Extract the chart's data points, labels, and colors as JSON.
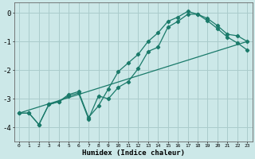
{
  "xlabel": "Humidex (Indice chaleur)",
  "ylabel": "",
  "bg_color": "#cce8e8",
  "grid_color": "#aacccc",
  "line_color": "#1a7a6a",
  "xlim": [
    -0.5,
    23.5
  ],
  "ylim": [
    -4.5,
    0.35
  ],
  "xticks": [
    0,
    1,
    2,
    3,
    4,
    5,
    6,
    7,
    8,
    9,
    10,
    11,
    12,
    13,
    14,
    15,
    16,
    17,
    18,
    19,
    20,
    21,
    22,
    23
  ],
  "yticks": [
    0,
    -1,
    -2,
    -3,
    -4
  ],
  "line1_x": [
    0,
    1,
    2,
    3,
    4,
    5,
    6,
    7,
    8,
    9,
    10,
    11,
    12,
    13,
    14,
    15,
    16,
    17,
    18,
    19,
    20,
    21,
    22,
    23
  ],
  "line1_y": [
    -3.5,
    -3.5,
    -3.9,
    -3.2,
    -3.1,
    -2.9,
    -2.8,
    -3.7,
    -2.9,
    -3.0,
    -2.6,
    -2.4,
    -1.95,
    -1.35,
    -1.2,
    -0.5,
    -0.3,
    -0.05,
    -0.05,
    -0.2,
    -0.45,
    -0.75,
    -0.8,
    -1.0
  ],
  "line2_x": [
    0,
    1,
    2,
    3,
    4,
    5,
    6,
    7,
    8,
    9,
    10,
    11,
    12,
    13,
    14,
    15,
    16,
    17,
    18,
    19,
    20,
    21,
    22,
    23
  ],
  "line2_y": [
    -3.5,
    -3.5,
    -3.9,
    -3.2,
    -3.1,
    -2.85,
    -2.75,
    -3.65,
    -3.25,
    -2.65,
    -2.05,
    -1.75,
    -1.45,
    -1.0,
    -0.7,
    -0.3,
    -0.15,
    0.05,
    -0.05,
    -0.28,
    -0.55,
    -0.85,
    -1.05,
    -1.3
  ],
  "line3_x": [
    0,
    23
  ],
  "line3_y": [
    -3.5,
    -1.0
  ]
}
